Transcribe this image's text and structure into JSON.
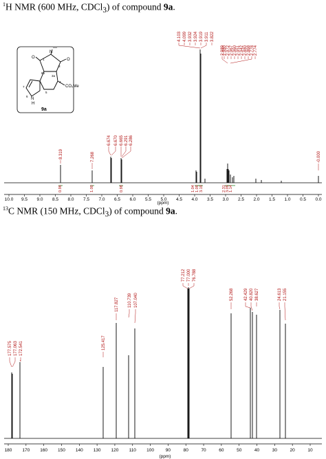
{
  "h_title": {
    "sup": "1",
    "text": "H NMR (600 MHz, CDCl",
    "sub": "3",
    "tail": ") of compound ",
    "compound": "9a",
    "end": "."
  },
  "c_title": {
    "sup": "13",
    "text": "C NMR (150 MHz, CDCl",
    "sub": "3",
    "tail": ") of compound ",
    "compound": "9a",
    "end": "."
  },
  "structure": {
    "compound_label": "9a",
    "atoms": {
      "N_top": "N",
      "methyl": "—",
      "O_left": "O",
      "O_right": "O",
      "c8b": "8b",
      "c3": "3",
      "c3a": "3a",
      "c4": "4",
      "c5": "5",
      "c7": "7",
      "n6": "6",
      "NH": "N",
      "H": "H",
      "ester": "CO₂Me",
      "o1": "1"
    }
  },
  "h_nmr": {
    "ticks": [
      "10.0",
      "9.5",
      "9.0",
      "8.5",
      "8.0",
      "7.5",
      "7.0",
      "6.5",
      "6.0",
      "5.5",
      "5.0",
      "4.5",
      "4.0",
      "3.5",
      "3.0",
      "2.5",
      "2.0",
      "1.5",
      "1.0",
      "0.5",
      "0.0"
    ],
    "unit": "(ppm)",
    "peak_labels_a": [
      "8.319"
    ],
    "peak_labels_b": [
      "7.268"
    ],
    "peak_labels_c": [
      "6.674",
      "6.670",
      "6.665",
      "6.291",
      "6.286"
    ],
    "peak_labels_d": [
      "4.103",
      "4.099",
      "3.932",
      "3.924",
      "3.919",
      "3.911",
      "3.822"
    ],
    "peak_labels_e": [
      "2.989",
      "2.980",
      "2.972",
      "2.967",
      "2.960",
      "2.951",
      "2.942",
      "2.880",
      "2.868",
      "2.778",
      "2.774"
    ],
    "peak_labels_f": [
      "-0.000"
    ],
    "integrals": [
      "0.96",
      "1.00",
      "0.98",
      "1.04",
      "1.09",
      "3.19",
      "2.31",
      "3.09",
      "1.14"
    ]
  },
  "c_nmr": {
    "ticks": [
      "180",
      "170",
      "160",
      "150",
      "140",
      "130",
      "120",
      "110",
      "100",
      "90",
      "80",
      "70",
      "60",
      "50",
      "40",
      "30",
      "20",
      "10"
    ],
    "unit": "(ppm)",
    "peak_labels_a": [
      "177.575",
      "177.063",
      "172.541"
    ],
    "peak_labels_b": [
      "125.417"
    ],
    "peak_labels_c": [
      "117.827"
    ],
    "peak_labels_d": [
      "110.739",
      "107.040"
    ],
    "peak_labels_e": [
      "77.212",
      "77.000",
      "76.788"
    ],
    "peak_labels_f": [
      "52.268"
    ],
    "peak_labels_g": [
      "42.429",
      "40.820",
      "38.627"
    ],
    "peak_labels_h": [
      "24.613",
      "21.155"
    ]
  }
}
